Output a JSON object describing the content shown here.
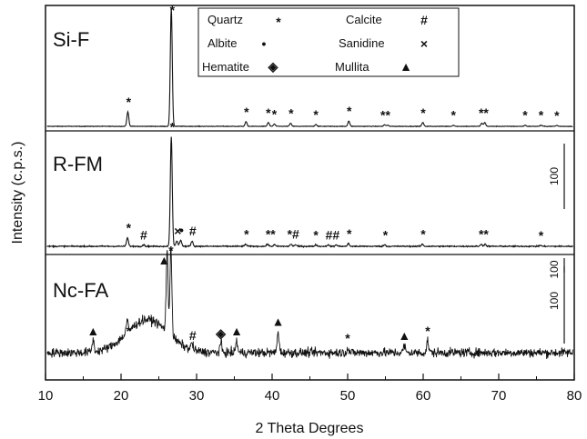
{
  "chart_data": {
    "type": "line",
    "xlabel": "2 Theta Degrees",
    "ylabel": "Intensity (c.p.s.)",
    "xlim": [
      10,
      80
    ],
    "xticks": [
      "10",
      "20",
      "30",
      "40",
      "50",
      "60",
      "70",
      "80"
    ],
    "yticks": "none",
    "grid": false,
    "legend": {
      "placement": "top-center",
      "entries": [
        {
          "name": "Quartz",
          "symbol": "*",
          "icon": "asterisk"
        },
        {
          "name": "Calcite",
          "symbol": "#",
          "icon": "hash"
        },
        {
          "name": "Albite",
          "symbol": "•",
          "icon": "dot"
        },
        {
          "name": "Sanidine",
          "symbol": "×",
          "icon": "cross"
        },
        {
          "name": "Hematite",
          "symbol": "◈",
          "icon": "diamond-dot"
        },
        {
          "name": "Mullita",
          "symbol": "▲",
          "icon": "triangle"
        }
      ]
    },
    "series": [
      {
        "name": "Si-F",
        "scale_bar": "100",
        "baseline": 0,
        "noise": 0.4,
        "peaks": [
          [
            20.9,
            19
          ],
          [
            26.65,
            155
          ],
          [
            36.55,
            6
          ],
          [
            39.5,
            5
          ],
          [
            40.3,
            3
          ],
          [
            42.45,
            4
          ],
          [
            45.8,
            2.5
          ],
          [
            50.15,
            7
          ],
          [
            54.9,
            2
          ],
          [
            55.3,
            1.5
          ],
          [
            59.95,
            5
          ],
          [
            64.0,
            1.5
          ],
          [
            67.75,
            4
          ],
          [
            68.15,
            5
          ],
          [
            73.5,
            1.5
          ],
          [
            75.6,
            1.5
          ],
          [
            77.7,
            1.2
          ]
        ],
        "markers": [
          {
            "x": 21.0,
            "symbol": "*",
            "h": 19
          },
          {
            "x": 26.8,
            "symbol": "*",
            "h": 155
          },
          {
            "x": 36.6,
            "symbol": "*",
            "h": 6
          },
          {
            "x": 39.5,
            "symbol": "*",
            "h": 5
          },
          {
            "x": 40.3,
            "symbol": "*",
            "h": 3
          },
          {
            "x": 42.5,
            "symbol": "*",
            "h": 4
          },
          {
            "x": 45.8,
            "symbol": "*",
            "h": 2.5
          },
          {
            "x": 50.2,
            "symbol": "*",
            "h": 7
          },
          {
            "x": 55.0,
            "symbol": "**",
            "h": 2
          },
          {
            "x": 60.0,
            "symbol": "*",
            "h": 5
          },
          {
            "x": 64.0,
            "symbol": "*",
            "h": 1.5
          },
          {
            "x": 68.0,
            "symbol": "**",
            "h": 5
          },
          {
            "x": 73.5,
            "symbol": "*",
            "h": 1.5
          },
          {
            "x": 75.6,
            "symbol": "*",
            "h": 1.5
          },
          {
            "x": 77.7,
            "symbol": "*",
            "h": 1.2
          }
        ]
      },
      {
        "name": "R-FM",
        "scale_bar": "100",
        "baseline": 0,
        "noise": 0.6,
        "peaks": [
          [
            20.85,
            8
          ],
          [
            23.0,
            1.5
          ],
          [
            26.65,
            104
          ],
          [
            27.4,
            5
          ],
          [
            27.9,
            6
          ],
          [
            29.4,
            5
          ],
          [
            36.5,
            2
          ],
          [
            39.4,
            2
          ],
          [
            40.3,
            1.5
          ],
          [
            42.5,
            2
          ],
          [
            43.1,
            1.5
          ],
          [
            45.8,
            1.5
          ],
          [
            47.4,
            1.5
          ],
          [
            48.5,
            1.5
          ],
          [
            50.1,
            2.5
          ],
          [
            54.9,
            1.5
          ],
          [
            59.9,
            2
          ],
          [
            67.7,
            2
          ],
          [
            68.2,
            2
          ],
          [
            75.5,
            1
          ]
        ],
        "markers": [
          {
            "x": 21.0,
            "symbol": "*",
            "h": 8
          },
          {
            "x": 23.0,
            "symbol": "#",
            "h": 1.5
          },
          {
            "x": 26.8,
            "symbol": "*",
            "h": 104
          },
          {
            "x": 27.5,
            "symbol": "×",
            "h": 5
          },
          {
            "x": 28.0,
            "symbol": "•",
            "h": 6
          },
          {
            "x": 29.5,
            "symbol": "#",
            "h": 5
          },
          {
            "x": 36.6,
            "symbol": "*",
            "h": 2
          },
          {
            "x": 39.8,
            "symbol": "**",
            "h": 2
          },
          {
            "x": 42.8,
            "symbol": "*#",
            "h": 2
          },
          {
            "x": 45.8,
            "symbol": "*",
            "h": 1.5
          },
          {
            "x": 48.0,
            "symbol": "##",
            "h": 1.5
          },
          {
            "x": 50.2,
            "symbol": "*",
            "h": 2.5
          },
          {
            "x": 55.0,
            "symbol": "*",
            "h": 1.5
          },
          {
            "x": 60.0,
            "symbol": "*",
            "h": 2
          },
          {
            "x": 68.0,
            "symbol": "**",
            "h": 2
          },
          {
            "x": 75.6,
            "symbol": "*",
            "h": 1
          }
        ]
      },
      {
        "name": "Nc-FA",
        "scale_bar": "100",
        "baseline": 0,
        "noise": 4,
        "hump": {
          "center": 23.5,
          "width": 3.8,
          "height": 28
        },
        "peaks": [
          [
            16.3,
            10
          ],
          [
            20.8,
            10
          ],
          [
            26.1,
            68
          ],
          [
            26.6,
            75
          ],
          [
            29.4,
            6
          ],
          [
            33.2,
            8
          ],
          [
            35.3,
            10
          ],
          [
            40.8,
            18
          ],
          [
            50.0,
            4
          ],
          [
            57.5,
            6
          ],
          [
            60.6,
            10
          ]
        ],
        "markers": [
          {
            "x": 16.3,
            "symbol": "▲",
            "h": 10
          },
          {
            "x": 21.0,
            "symbol": "*",
            "h": 10
          },
          {
            "x": 25.7,
            "symbol": "▲",
            "h": 70
          },
          {
            "x": 26.6,
            "symbol": "*",
            "h": 78
          },
          {
            "x": 29.5,
            "symbol": "#",
            "h": 6
          },
          {
            "x": 33.2,
            "symbol": "◈",
            "h": 8
          },
          {
            "x": 35.3,
            "symbol": "▲",
            "h": 10
          },
          {
            "x": 40.8,
            "symbol": "▲",
            "h": 18
          },
          {
            "x": 50.0,
            "symbol": "*",
            "h": 4
          },
          {
            "x": 57.5,
            "symbol": "▲",
            "h": 6
          },
          {
            "x": 60.6,
            "symbol": "*",
            "h": 10
          }
        ]
      }
    ]
  }
}
